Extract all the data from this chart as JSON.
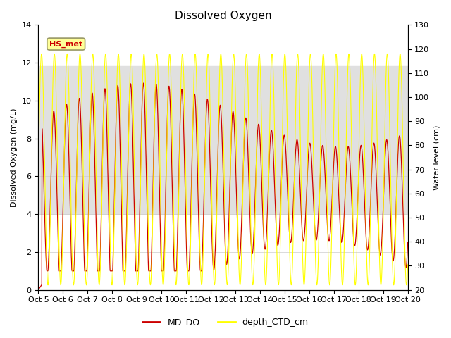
{
  "title": "Dissolved Oxygen",
  "ylabel_left": "Dissolved Oxygen (mg/L)",
  "ylabel_right": "Water level (cm)",
  "ylim_left": [
    0,
    14
  ],
  "ylim_right": [
    20,
    130
  ],
  "yticks_left": [
    0,
    2,
    4,
    6,
    8,
    10,
    12,
    14
  ],
  "yticks_right": [
    20,
    30,
    40,
    50,
    60,
    70,
    80,
    90,
    100,
    110,
    120,
    130
  ],
  "x_start": 0.0,
  "x_end": 15.0,
  "xtick_labels": [
    "Oct 5",
    "Oct 6",
    "Oct 7",
    "Oct 8",
    "Oct 9",
    "Oct 10",
    "Oct 11",
    "Oct 12",
    "Oct 13",
    "Oct 14",
    "Oct 15",
    "Oct 16",
    "Oct 17",
    "Oct 18",
    "Oct 19",
    "Oct 20"
  ],
  "xtick_positions": [
    0,
    1,
    2,
    3,
    4,
    5,
    6,
    7,
    8,
    9,
    10,
    11,
    12,
    13,
    14,
    15
  ],
  "color_do": "#cc0000",
  "color_depth": "#ffff00",
  "legend_do": "MD_DO",
  "legend_depth": "depth_CTD_cm",
  "annotation_text": "HS_met",
  "annotation_color": "#cc0000",
  "annotation_bg": "#ffff99",
  "annotation_border": "#999966",
  "grid_color": "#cccccc",
  "shading_color": "#e0e0e0",
  "shading_band": [
    4.0,
    11.8
  ],
  "background_color": "#ffffff",
  "title_fontsize": 11,
  "label_fontsize": 8,
  "tick_fontsize": 8
}
